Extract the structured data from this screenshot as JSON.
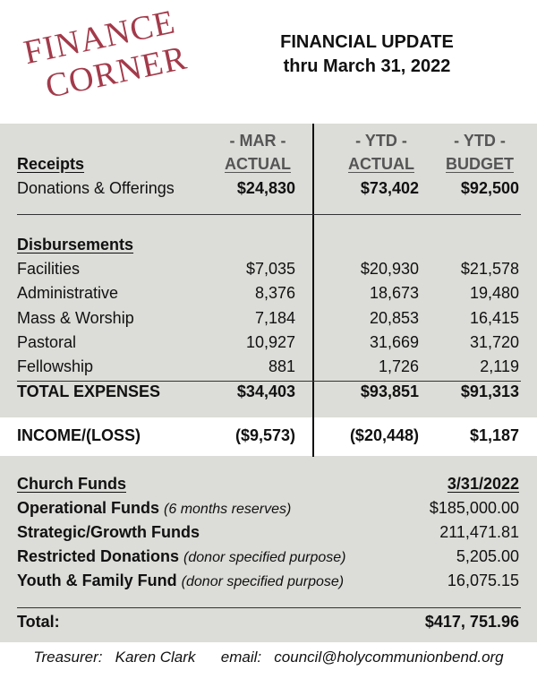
{
  "stamp": {
    "line1": "FINANCE",
    "line2": "CORNER"
  },
  "heading": {
    "title": "FINANCIAL UPDATE",
    "subtitle": "thru March 31, 2022"
  },
  "columns": {
    "mar_top": "- MAR -",
    "mar_bottom": "ACTUAL",
    "ytd_top": "- YTD -",
    "ytd_bottom": "ACTUAL",
    "bud_top": "- YTD -",
    "bud_bottom": "BUDGET"
  },
  "receipts": {
    "header": "Receipts",
    "rows": [
      {
        "label": "Donations & Offerings",
        "mar": "$24,830",
        "ytd": "$73,402",
        "budget": "$92,500"
      }
    ]
  },
  "disbursements": {
    "header": "Disbursements",
    "rows": [
      {
        "label": "Facilities",
        "mar": "$7,035",
        "ytd": "$20,930",
        "budget": "$21,578"
      },
      {
        "label": "Administrative",
        "mar": "8,376",
        "ytd": "18,673",
        "budget": "19,480"
      },
      {
        "label": "Mass & Worship",
        "mar": "7,184",
        "ytd": "20,853",
        "budget": "16,415"
      },
      {
        "label": "Pastoral",
        "mar": "10,927",
        "ytd": "31,669",
        "budget": "31,720"
      },
      {
        "label": "Fellowship",
        "mar": "881",
        "ytd": "1,726",
        "budget": "2,119"
      }
    ],
    "total": {
      "label": "TOTAL EXPENSES",
      "mar": "$34,403",
      "ytd": "$93,851",
      "budget": "$91,313"
    }
  },
  "income": {
    "label": "INCOME/(LOSS)",
    "mar": "($9,573)",
    "ytd": "($20,448)",
    "budget": "$1,187"
  },
  "funds": {
    "header": "Church Funds",
    "date": "3/31/2022",
    "rows": [
      {
        "label": "Operational Funds",
        "note": "(6 months reserves)",
        "value": "$185,000.00"
      },
      {
        "label": "Strategic/Growth Funds",
        "note": "",
        "value": "211,471.81"
      },
      {
        "label": "Restricted Donations",
        "note": "(donor specified purpose)",
        "value": "5,205.00"
      },
      {
        "label": "Youth & Family Fund",
        "note": "(donor specified purpose)",
        "value": "16,075.15"
      }
    ],
    "total_label": "Total:",
    "total_value": "$417, 751.96"
  },
  "footer": {
    "treasurer_label": "Treasurer:",
    "treasurer_name": "Karen Clark",
    "email_label": "email:",
    "email": "council@holycommunionbend.org"
  },
  "colors": {
    "stamp": "#a33a4a",
    "panel": "#dcdcd8"
  }
}
